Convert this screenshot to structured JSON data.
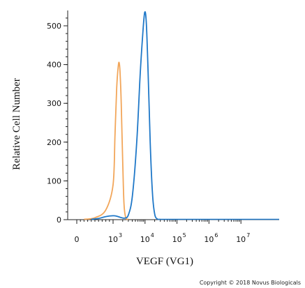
{
  "chart_data": {
    "type": "line",
    "title": "",
    "xlabel": "VEGF (VG1)",
    "ylabel": "Relative Cell Number",
    "xscale": "biexponential",
    "xlim": [
      -10,
      10000000
    ],
    "ylim": [
      0,
      550
    ],
    "y_ticks": [
      0,
      100,
      200,
      300,
      400,
      500
    ],
    "x_ticks": [
      {
        "value": 0,
        "label": "0",
        "exp": ""
      },
      {
        "value": 1000,
        "label": "10",
        "exp": "3"
      },
      {
        "value": 10000,
        "label": "10",
        "exp": "4"
      },
      {
        "value": 100000,
        "label": "10",
        "exp": "5"
      },
      {
        "value": 1000000,
        "label": "10",
        "exp": "6"
      },
      {
        "value": 10000000,
        "label": "10",
        "exp": "7"
      }
    ],
    "grid": false,
    "legend": "none",
    "series": [
      {
        "color": "#f2a65a",
        "points": [
          [
            200,
            0
          ],
          [
            500,
            5
          ],
          [
            800,
            25
          ],
          [
            1000,
            90
          ],
          [
            1150,
            220
          ],
          [
            1300,
            340
          ],
          [
            1450,
            395
          ],
          [
            1550,
            405
          ],
          [
            1650,
            380
          ],
          [
            1800,
            300
          ],
          [
            2000,
            150
          ],
          [
            2200,
            40
          ],
          [
            2500,
            5
          ],
          [
            3000,
            0
          ]
        ]
      },
      {
        "color": "#1f78c8",
        "points": [
          [
            400,
            0
          ],
          [
            600,
            3
          ],
          [
            800,
            8
          ],
          [
            1000,
            10
          ],
          [
            1300,
            9
          ],
          [
            1700,
            6
          ],
          [
            2300,
            4
          ],
          [
            3000,
            12
          ],
          [
            4000,
            60
          ],
          [
            5500,
            200
          ],
          [
            7000,
            370
          ],
          [
            8500,
            480
          ],
          [
            9800,
            535
          ],
          [
            11000,
            505
          ],
          [
            12500,
            380
          ],
          [
            14500,
            200
          ],
          [
            17000,
            70
          ],
          [
            20000,
            15
          ],
          [
            24000,
            2
          ],
          [
            30000,
            0
          ]
        ]
      }
    ]
  },
  "copyright": "Copyright © 2018 Novus Biologicals"
}
